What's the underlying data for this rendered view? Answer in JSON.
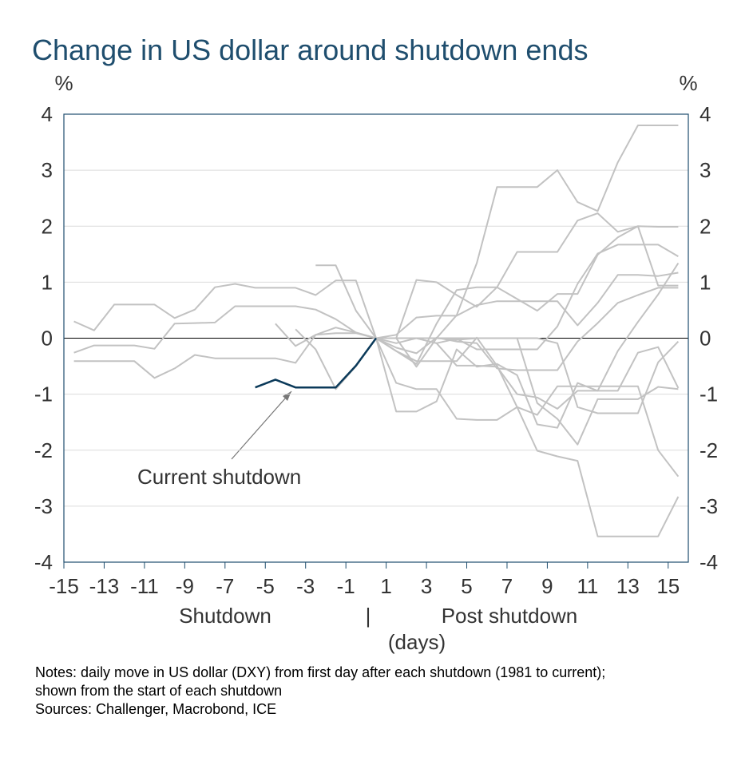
{
  "chart_data": {
    "type": "line",
    "title": "Change in US dollar around shutdown ends",
    "ylabel": "%",
    "y2label": "%",
    "xlabels": [
      "Shutdown",
      "|",
      "Post shutdown",
      "(days)"
    ],
    "notes": [
      "Notes: daily move in US dollar (DXY) from first day after each shutdown (1981 to current);",
      "shown from the start of each shutdown",
      "Sources: Challenger, Macrobond, ICE"
    ],
    "xlim": [
      -15,
      16
    ],
    "xticks": [
      -15,
      -13,
      -11,
      -9,
      -7,
      -5,
      -3,
      -1,
      1,
      3,
      5,
      7,
      9,
      11,
      13,
      15
    ],
    "ylim": [
      -4,
      4
    ],
    "yticks": [
      -4,
      -3,
      -2,
      -1,
      0,
      1,
      2,
      3,
      4
    ],
    "y2lim": [
      -4,
      4
    ],
    "y2ticks": [
      -4,
      -3,
      -2,
      -1,
      0,
      1,
      2,
      3,
      4
    ],
    "grid": true,
    "reference_line": 0,
    "x": [
      -14.5,
      -13.5,
      -12.5,
      -11.5,
      -10.5,
      -9.5,
      -8.5,
      -7.5,
      -6.5,
      -5.5,
      -4.5,
      -3.5,
      -2.5,
      -1.5,
      -0.5,
      0.5,
      1.5,
      2.5,
      3.5,
      4.5,
      5.5,
      6.5,
      7.5,
      8.5,
      9.5,
      10.5,
      11.5,
      12.5,
      13.5,
      14.5,
      15.5
    ],
    "series": [
      {
        "color": "#c2c2c2",
        "values": [
          0.3,
          0.14,
          0.6,
          0.6,
          0.6,
          0.36,
          0.51,
          0.91,
          0.97,
          0.9,
          0.9,
          0.9,
          0.77,
          1.03,
          1.03,
          0,
          0,
          0,
          0,
          0.41,
          1.34,
          2.7,
          2.7,
          2.7,
          3.0,
          2.43,
          2.27,
          3.14,
          3.8,
          3.8,
          3.8
        ]
      },
      {
        "color": "#c2c2c2",
        "values": [
          -0.26,
          -0.13,
          -0.13,
          -0.13,
          -0.19,
          0.26,
          0.27,
          0.28,
          0.57,
          0.57,
          0.57,
          0.57,
          0.51,
          0.34,
          0.1,
          0,
          0,
          1.04,
          1.0,
          0.77,
          0.56,
          0.91,
          1.54,
          1.54,
          1.54,
          2.1,
          2.23,
          1.9,
          2.0,
          1.99,
          1.99
        ]
      },
      {
        "color": "#c2c2c2",
        "values": [
          -0.41,
          -0.41,
          -0.41,
          -0.41,
          -0.71,
          -0.54,
          -0.3,
          -0.36,
          -0.36,
          -0.36,
          -0.36,
          -0.44,
          0.06,
          0.09,
          0.09,
          0,
          -0.23,
          -0.46,
          0.26,
          0.86,
          0.91,
          0.91,
          0.7,
          0.49,
          0.79,
          0.79,
          1.49,
          1.8,
          2.0,
          0.94,
          0.94
        ]
      },
      {
        "color": "#c2c2c2",
        "values": [
          null,
          null,
          null,
          null,
          null,
          null,
          null,
          null,
          null,
          null,
          null,
          null,
          1.3,
          1.3,
          0.49,
          0,
          0.06,
          0.37,
          0.4,
          0.4,
          0.59,
          0.66,
          0.66,
          0.66,
          0.66,
          0.23,
          0.63,
          1.13,
          1.13,
          1.11,
          1.17
        ]
      },
      {
        "color": "#c2c2c2",
        "values": [
          null,
          null,
          null,
          null,
          null,
          null,
          null,
          null,
          null,
          null,
          0.26,
          -0.14,
          0.06,
          0.19,
          0.1,
          0,
          -1.31,
          -1.31,
          -1.13,
          -0.2,
          -0.51,
          -0.46,
          -0.66,
          -1.54,
          -1.6,
          -0.8,
          -0.94,
          -0.94,
          -0.26,
          -0.16,
          -0.89
        ]
      },
      {
        "color": "#c2c2c2",
        "values": [
          null,
          null,
          null,
          null,
          null,
          null,
          null,
          null,
          null,
          null,
          null,
          0.16,
          -0.2,
          -0.91,
          -0.5,
          0,
          -0.8,
          -0.91,
          -0.91,
          -1.44,
          -1.46,
          -1.46,
          -1.23,
          -1.37,
          -0.86,
          -0.86,
          -0.86,
          -0.86,
          -0.86,
          -2.0,
          -2.47
        ]
      },
      {
        "color": "#c2c2c2",
        "values": [
          null,
          null,
          null,
          null,
          null,
          null,
          null,
          null,
          null,
          null,
          null,
          null,
          null,
          null,
          null,
          0,
          -0.23,
          -0.41,
          -0.41,
          -0.41,
          0.01,
          -0.49,
          -1.23,
          -2.01,
          -2.11,
          -2.19,
          -3.54,
          -3.54,
          -3.54,
          -3.54,
          -2.83
        ]
      },
      {
        "color": "#c2c2c2",
        "values": [
          null,
          null,
          null,
          null,
          null,
          null,
          null,
          null,
          null,
          null,
          null,
          null,
          null,
          null,
          null,
          0,
          -0.09,
          0,
          -0.09,
          -0.01,
          -0.2,
          -0.2,
          -0.2,
          -0.2,
          0.21,
          0.97,
          1.51,
          1.67,
          1.67,
          1.67,
          1.46
        ]
      },
      {
        "color": "#c2c2c2",
        "values": [
          null,
          null,
          null,
          null,
          null,
          null,
          null,
          null,
          null,
          null,
          null,
          null,
          null,
          null,
          null,
          0,
          -0.17,
          -0.27,
          0.01,
          -0.06,
          -0.09,
          -0.54,
          -0.57,
          -0.57,
          -0.57,
          -0.06,
          0.27,
          0.63,
          0.77,
          0.9,
          0.9
        ]
      },
      {
        "color": "#c2c2c2",
        "values": [
          null,
          null,
          null,
          null,
          null,
          null,
          null,
          null,
          null,
          null,
          null,
          null,
          null,
          null,
          null,
          0,
          0,
          0,
          0,
          0,
          0,
          0,
          0,
          0,
          -0.09,
          -1.23,
          -1.34,
          -1.34,
          -1.34,
          -0.43,
          -0.06
        ]
      },
      {
        "color": "#c2c2c2",
        "values": [
          null,
          null,
          null,
          null,
          null,
          null,
          null,
          null,
          null,
          null,
          null,
          null,
          null,
          null,
          null,
          0,
          0,
          -0.51,
          0,
          -0.03,
          0,
          0,
          0,
          -1.16,
          -1.44,
          -1.9,
          -1.09,
          -1.09,
          -1.09,
          -0.87,
          -0.91
        ]
      },
      {
        "color": "#c2c2c2",
        "values": [
          null,
          null,
          null,
          null,
          null,
          null,
          null,
          null,
          null,
          null,
          null,
          null,
          null,
          null,
          null,
          0,
          0,
          0,
          -0.09,
          -0.49,
          -0.49,
          -0.51,
          -1.0,
          -1.06,
          -1.26,
          -0.94,
          -0.94,
          -0.23,
          0.29,
          0.78,
          1.34
        ]
      },
      {
        "name": "Current shutdown",
        "color": "#0b3a5a",
        "values": [
          null,
          null,
          null,
          null,
          null,
          null,
          null,
          null,
          null,
          -0.88,
          -0.74,
          -0.88,
          -0.88,
          -0.88,
          -0.49,
          0,
          null,
          null,
          null,
          null,
          null,
          null,
          null,
          null,
          null,
          null,
          null,
          null,
          null,
          null,
          null
        ]
      }
    ]
  }
}
